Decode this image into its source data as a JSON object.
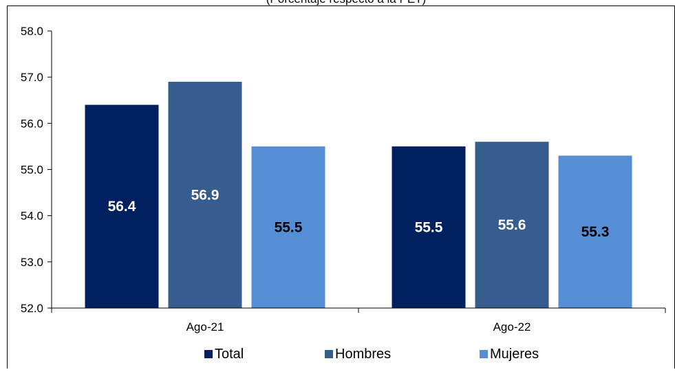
{
  "chart_data": {
    "type": "bar",
    "subtitle": "(Porcentaje respecto a la PET)",
    "categories": [
      "Ago-21",
      "Ago-22"
    ],
    "series": [
      {
        "name": "Total",
        "color": "#002060",
        "label_color": "#ffffff",
        "values": [
          56.4,
          55.5
        ]
      },
      {
        "name": "Hombres",
        "color": "#355E8E",
        "label_color": "#ffffff",
        "values": [
          56.9,
          55.6
        ]
      },
      {
        "name": "Mujeres",
        "color": "#558ED5",
        "label_color": "#000000",
        "values": [
          55.5,
          55.3
        ]
      }
    ],
    "data_labels": [
      [
        "56.4",
        "55.5"
      ],
      [
        "56.9",
        "55.6"
      ],
      [
        "55.5",
        "55.3"
      ]
    ],
    "ylim": [
      52.0,
      58.0
    ],
    "yticks": [
      "52.0",
      "53.0",
      "54.0",
      "55.0",
      "56.0",
      "57.0",
      "58.0"
    ],
    "grid": false,
    "legend_position": "bottom"
  }
}
